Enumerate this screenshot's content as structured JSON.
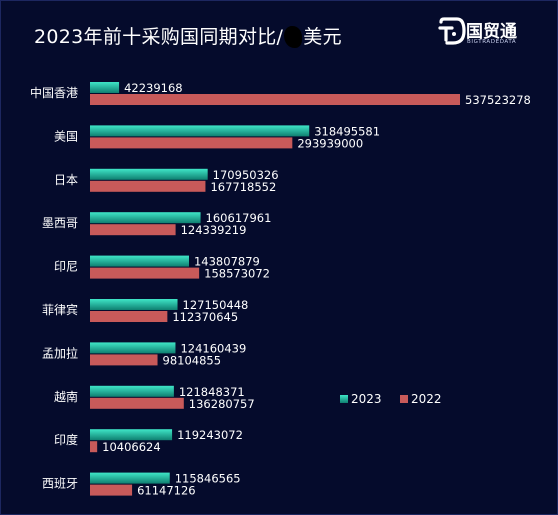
{
  "header": {
    "title_before": "2023年前十采购国同期对比/",
    "title_after": "美元",
    "logo_name": "国贸通",
    "logo_sub": "BIGTRADEDATA",
    "logo_icon": "bigtradedata-logo-icon"
  },
  "colors": {
    "background": "#050b2c",
    "bar_2023_top": "#3fe6c7",
    "bar_2023_bottom": "#0f7f70",
    "bar_2022": "#c85a5a",
    "text": "#ffffff"
  },
  "chart_data": {
    "type": "bar",
    "orientation": "horizontal",
    "title": "2023年前十采购国同期对比/美元",
    "categories": [
      "中国香港",
      "美国",
      "日本",
      "墨西哥",
      "印尼",
      "菲律宾",
      "孟加拉",
      "越南",
      "印度",
      "西班牙"
    ],
    "series": [
      {
        "name": "2023",
        "values": [
          42239168,
          318495581,
          170950326,
          160617961,
          143807879,
          127150448,
          124160439,
          121848371,
          119243072,
          115846565
        ]
      },
      {
        "name": "2022",
        "values": [
          537523278,
          293939000,
          167718552,
          124339219,
          158573072,
          112370645,
          98104855,
          136280757,
          10406624,
          61147126
        ]
      }
    ],
    "xlim": [
      0,
      537523278
    ],
    "data_labels": true,
    "legend_position": "right-lower",
    "grid": false
  }
}
